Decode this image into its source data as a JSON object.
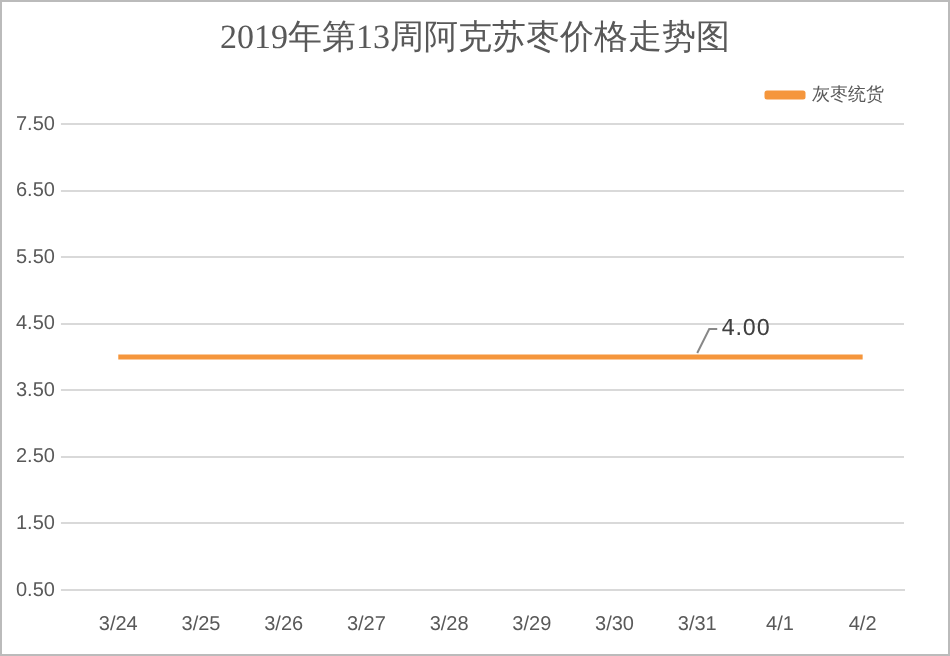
{
  "chart_data": {
    "type": "line",
    "title": "2019年第13周阿克苏枣价格走势图",
    "categories": [
      "3/24",
      "3/25",
      "3/26",
      "3/27",
      "3/28",
      "3/29",
      "3/30",
      "3/31",
      "4/1",
      "4/2"
    ],
    "series": [
      {
        "name": "灰枣统货",
        "color": "#f5963c",
        "values": [
          4,
          4,
          4,
          4,
          4,
          4,
          4,
          4,
          4,
          4
        ],
        "value_labels": [
          null,
          null,
          null,
          null,
          null,
          null,
          null,
          "4.00",
          null,
          null
        ]
      }
    ],
    "ylim": [
      0.5,
      7.5
    ],
    "yticks": [
      {
        "value": 0.5,
        "label": "0.50"
      },
      {
        "value": 1.5,
        "label": "1.50"
      },
      {
        "value": 2.5,
        "label": "2.50"
      },
      {
        "value": 3.5,
        "label": "3.50"
      },
      {
        "value": 4.5,
        "label": "4.50"
      },
      {
        "value": 5.5,
        "label": "5.50"
      },
      {
        "value": 6.5,
        "label": "6.50"
      },
      {
        "value": 7.5,
        "label": "7.50"
      }
    ],
    "grid": "y",
    "legend": "top right",
    "marker": "none",
    "line_style": "solid"
  }
}
